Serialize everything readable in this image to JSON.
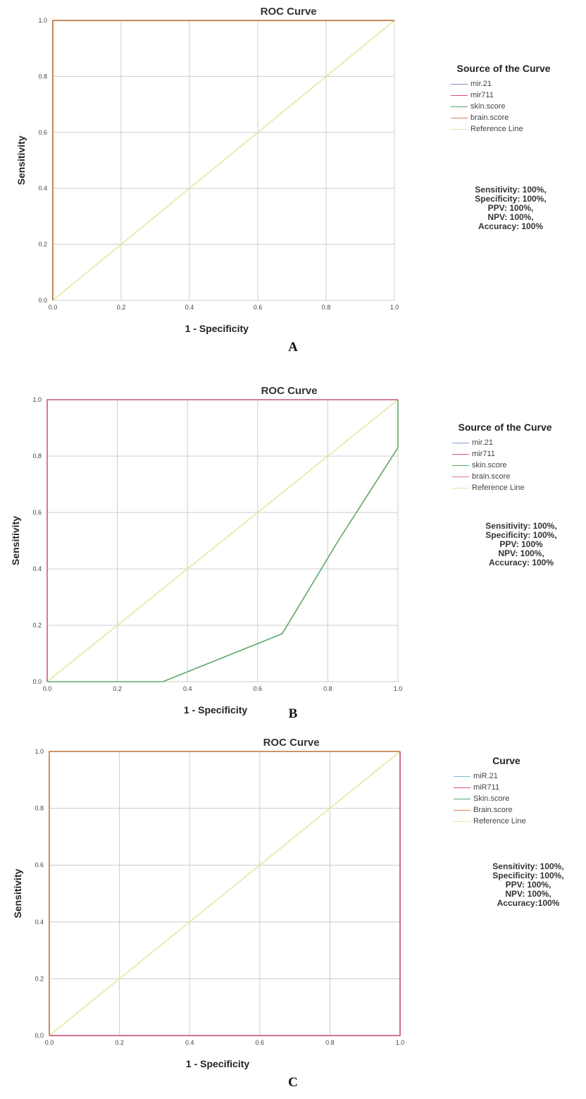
{
  "chart_data": [
    {
      "panel": "A",
      "type": "line",
      "title": "ROC Curve",
      "xlabel": "1 - Specificity",
      "ylabel": "Sensitivity",
      "xlim": [
        0,
        1
      ],
      "ylim": [
        0,
        1
      ],
      "xticks": [
        "0.0",
        "0.2",
        "0.4",
        "0.6",
        "0.8",
        "1.0"
      ],
      "yticks": [
        "0.0",
        "0.2",
        "0.4",
        "0.6",
        "0.8",
        "1.0"
      ],
      "grid": true,
      "legend_position": "right",
      "legend_title": "Source of the Curve",
      "series": [
        {
          "name": "mir.21",
          "color": "#7b8fd0",
          "x": [
            0,
            0,
            1
          ],
          "y": [
            0,
            1,
            1
          ]
        },
        {
          "name": "mir711",
          "color": "#d9546e",
          "x": [
            0,
            0,
            1
          ],
          "y": [
            0,
            1,
            1
          ]
        },
        {
          "name": "skin.score",
          "color": "#5aa86a",
          "x": [
            0,
            0,
            1
          ],
          "y": [
            0,
            1,
            1
          ]
        },
        {
          "name": "brain.score",
          "color": "#d4834a",
          "x": [
            0,
            0,
            1
          ],
          "y": [
            0,
            1,
            1
          ]
        },
        {
          "name": "Reference Line",
          "color": "#e8e6a0",
          "x": [
            0,
            1
          ],
          "y": [
            0,
            1
          ]
        }
      ],
      "stats": [
        "Sensitivity: 100%,",
        "Specificity: 100%,",
        "PPV: 100%,",
        "NPV: 100%,",
        "Accuracy: 100%"
      ]
    },
    {
      "panel": "B",
      "type": "line",
      "title": "ROC Curve",
      "xlabel": "1 - Specificity",
      "ylabel": "Sensitivity",
      "xlim": [
        0,
        1
      ],
      "ylim": [
        0,
        1
      ],
      "xticks": [
        "0.0",
        "0.2",
        "0.4",
        "0.6",
        "0.8",
        "1.0"
      ],
      "yticks": [
        "0.0",
        "0.2",
        "0.4",
        "0.6",
        "0.8",
        "1.0"
      ],
      "grid": true,
      "legend_position": "right",
      "legend_title": "Source of the Curve",
      "series": [
        {
          "name": "mir.21",
          "color": "#7b9fd6",
          "x": [
            0,
            0,
            1
          ],
          "y": [
            0,
            1,
            1
          ]
        },
        {
          "name": "mir711",
          "color": "#d9546e",
          "x": [
            0,
            0,
            1
          ],
          "y": [
            0,
            1,
            1
          ]
        },
        {
          "name": "skin.score",
          "color": "#5aa86a",
          "x": [
            0,
            0.33,
            0.67,
            0.83,
            1.0,
            1.0
          ],
          "y": [
            0,
            0,
            0.17,
            0.5,
            0.83,
            1.0
          ]
        },
        {
          "name": "brain.score",
          "color": "#d97a8a",
          "x": [
            0,
            0,
            1
          ],
          "y": [
            0,
            1,
            1
          ]
        },
        {
          "name": "Reference Line",
          "color": "#e8e6a0",
          "x": [
            0,
            1
          ],
          "y": [
            0,
            1
          ]
        }
      ],
      "stats": [
        "Sensitivity: 100%,",
        "Specificity: 100%,",
        "PPV: 100%",
        "NPV: 100%,",
        "Accuracy: 100%"
      ]
    },
    {
      "panel": "C",
      "type": "line",
      "title": "ROC Curve",
      "xlabel": "1 - Specificity",
      "ylabel": "Sensitivity",
      "xlim": [
        0,
        1
      ],
      "ylim": [
        0,
        1
      ],
      "xticks": [
        "0.0",
        "0.2",
        "0.4",
        "0.6",
        "0.8",
        "1.0"
      ],
      "yticks": [
        "0.0",
        "0.2",
        "0.4",
        "0.6",
        "0.8",
        "1.0"
      ],
      "grid": true,
      "legend_position": "right",
      "legend_title": "Curve",
      "series": [
        {
          "name": "miR.21",
          "color": "#7fb8d8",
          "x": [
            0,
            1,
            1
          ],
          "y": [
            0,
            0,
            1
          ]
        },
        {
          "name": "miR711",
          "color": "#d9546e",
          "x": [
            0,
            1,
            1
          ],
          "y": [
            0,
            0,
            1
          ]
        },
        {
          "name": "Skin.score",
          "color": "#5aa86a",
          "x": [
            0,
            0,
            1
          ],
          "y": [
            0,
            1,
            1
          ]
        },
        {
          "name": "Brain.score",
          "color": "#d4834a",
          "x": [
            0,
            0,
            1
          ],
          "y": [
            0,
            1,
            1
          ]
        },
        {
          "name": "Reference Line",
          "color": "#e8e6a0",
          "x": [
            0,
            1
          ],
          "y": [
            0,
            1
          ]
        }
      ],
      "stats": [
        "Sensitivity: 100%,",
        "Specificity: 100%,",
        "PPV: 100%,",
        "NPV: 100%,",
        "Accuracy:100%"
      ]
    }
  ],
  "colors": {
    "grid": "#cccccc",
    "axis": "#444444"
  }
}
